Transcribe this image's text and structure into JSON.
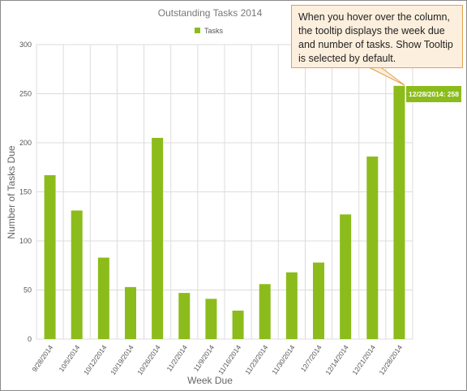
{
  "callout": {
    "text": "When you hover over the column, the tooltip displays the week due and number of tasks. Show Tooltip is selected by default."
  },
  "tooltip": {
    "text": "12/28/2014: 258"
  },
  "chart_data": {
    "type": "bar",
    "title": "Outstanding Tasks 2014",
    "xlabel": "Week Due",
    "ylabel": "Number of Tasks Due",
    "ylim": [
      0,
      300
    ],
    "yticks": [
      0,
      50,
      100,
      150,
      200,
      250,
      300
    ],
    "grid": true,
    "legend_position": "top",
    "categories": [
      "9/28/2014",
      "10/5/2014",
      "10/12/2014",
      "10/19/2014",
      "10/26/2014",
      "11/2/2014",
      "11/9/2014",
      "11/16/2014",
      "11/23/2014",
      "11/30/2014",
      "12/7/2014",
      "12/14/2014",
      "12/21/2014",
      "12/28/2014"
    ],
    "series": [
      {
        "name": "Tasks",
        "color": "#8cbc1b",
        "values": [
          167,
          131,
          83,
          53,
          205,
          47,
          41,
          29,
          56,
          68,
          78,
          127,
          186,
          258
        ]
      }
    ]
  }
}
